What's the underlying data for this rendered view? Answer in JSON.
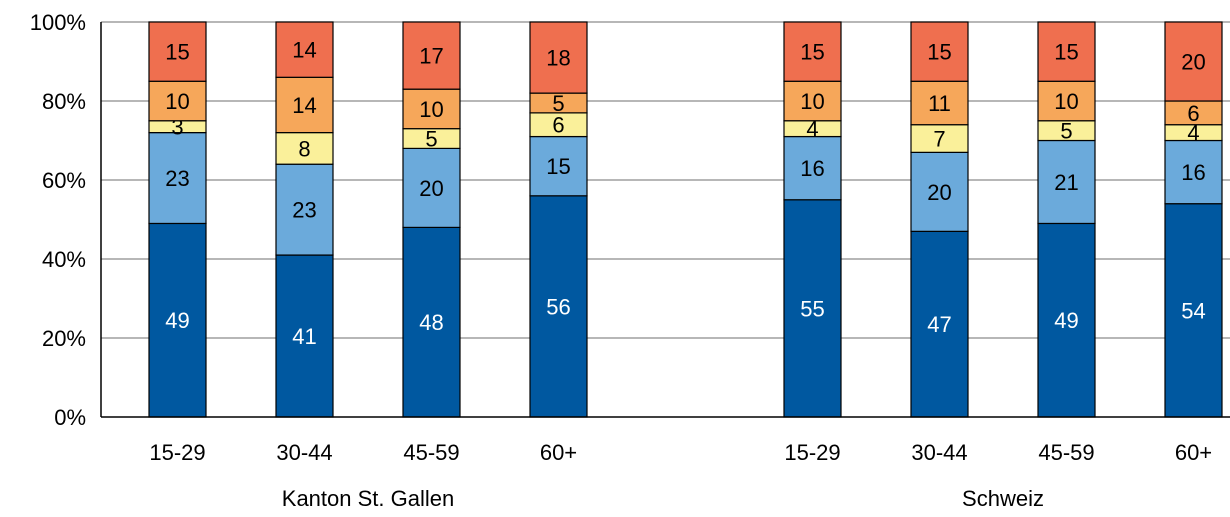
{
  "chart_data": {
    "type": "bar",
    "stacked": true,
    "normalized": true,
    "title": "",
    "xlabel": "",
    "ylabel": "",
    "ylim": [
      0,
      100
    ],
    "yticks": [
      "0%",
      "20%",
      "40%",
      "60%",
      "80%",
      "100%"
    ],
    "grid": true,
    "legend": "none",
    "groups": [
      {
        "label": "Kanton St. Gallen",
        "categories": [
          "15-29",
          "30-44",
          "45-59",
          "60+"
        ]
      },
      {
        "label": "Schweiz",
        "categories": [
          "15-29",
          "30-44",
          "45-59",
          "60+"
        ]
      }
    ],
    "series": [
      {
        "color": "#0058A0",
        "label_color": "#ffffff",
        "values": [
          49,
          41,
          48,
          56,
          55,
          47,
          49,
          54
        ]
      },
      {
        "color": "#6BAADB",
        "label_color": "#000000",
        "values": [
          23,
          23,
          20,
          15,
          16,
          20,
          21,
          16
        ]
      },
      {
        "color": "#FAF09A",
        "label_color": "#000000",
        "values": [
          3,
          8,
          5,
          6,
          4,
          7,
          5,
          4
        ]
      },
      {
        "color": "#F6A75A",
        "label_color": "#000000",
        "values": [
          10,
          14,
          10,
          5,
          10,
          11,
          10,
          6
        ]
      },
      {
        "color": "#EF6F4F",
        "label_color": "#000000",
        "values": [
          15,
          14,
          17,
          18,
          15,
          15,
          15,
          20
        ]
      }
    ]
  }
}
